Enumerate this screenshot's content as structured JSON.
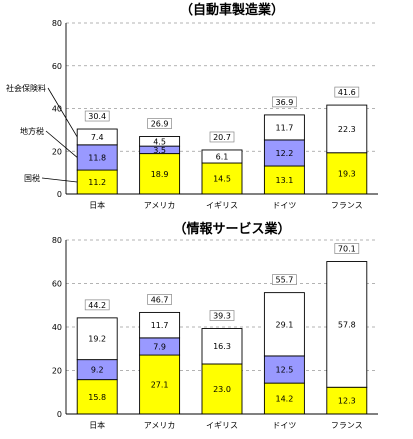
{
  "chart_data": [
    {
      "type": "bar",
      "stacked": true,
      "title": "（自動車製造業）",
      "categories": [
        "日本",
        "アメリカ",
        "イギリス",
        "ドイツ",
        "フランス"
      ],
      "ylim": [
        0,
        80
      ],
      "yticks": [
        0,
        20,
        40,
        60,
        80
      ],
      "grid": true,
      "totals": [
        30.4,
        26.9,
        20.7,
        36.9,
        41.6
      ],
      "series": [
        {
          "name": "国税",
          "color": "#ffff00",
          "values": [
            11.2,
            18.9,
            14.5,
            13.1,
            19.3
          ]
        },
        {
          "name": "地方税",
          "color": "#9999ff",
          "values": [
            11.8,
            3.5,
            null,
            12.2,
            null
          ]
        },
        {
          "name": "社会保険料",
          "color": "#ffffff",
          "values": [
            7.4,
            4.5,
            6.1,
            11.7,
            22.3
          ]
        }
      ]
    },
    {
      "type": "bar",
      "stacked": true,
      "title": "（情報サービス業）",
      "categories": [
        "日本",
        "アメリカ",
        "イギリス",
        "ドイツ",
        "フランス"
      ],
      "ylim": [
        0,
        80
      ],
      "yticks": [
        0,
        20,
        40,
        60,
        80
      ],
      "grid": true,
      "totals": [
        44.2,
        46.7,
        39.3,
        55.7,
        70.1
      ],
      "series": [
        {
          "name": "国税",
          "color": "#ffff00",
          "values": [
            15.8,
            27.1,
            23.0,
            14.2,
            12.3
          ]
        },
        {
          "name": "地方税",
          "color": "#9999ff",
          "values": [
            9.2,
            7.9,
            null,
            12.5,
            null
          ]
        },
        {
          "name": "社会保険料",
          "color": "#ffffff",
          "values": [
            19.2,
            11.7,
            16.3,
            29.1,
            57.8
          ]
        }
      ]
    }
  ]
}
